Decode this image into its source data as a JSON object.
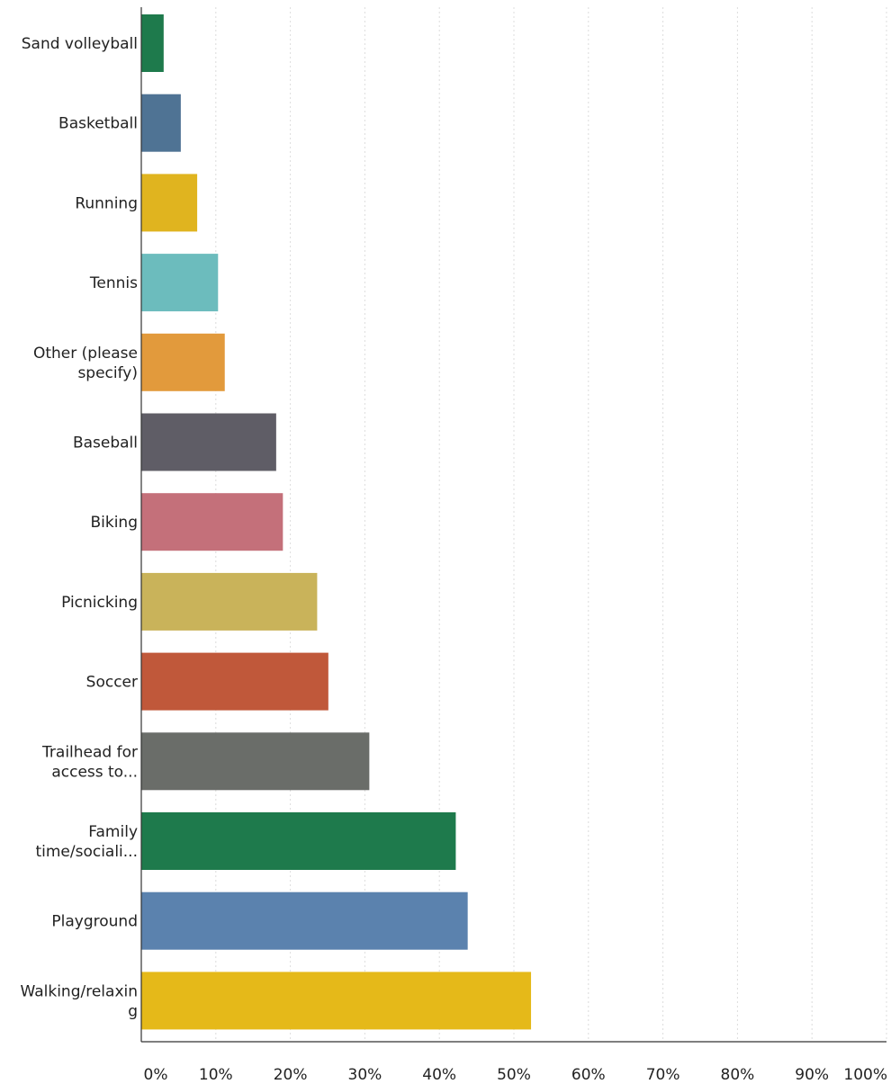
{
  "chart_data": {
    "type": "bar",
    "orientation": "horizontal",
    "title": "",
    "xlabel": "",
    "ylabel": "",
    "xlim": [
      0,
      100
    ],
    "grid": true,
    "categories": [
      [
        "Sand volleyball"
      ],
      [
        "Basketball"
      ],
      [
        "Running"
      ],
      [
        "Tennis"
      ],
      [
        "Other (please",
        "specify)"
      ],
      [
        "Baseball"
      ],
      [
        "Biking"
      ],
      [
        "Picnicking"
      ],
      [
        "Soccer"
      ],
      [
        "Trailhead for",
        "access to..."
      ],
      [
        "Family",
        "time/sociali..."
      ],
      [
        "Playground"
      ],
      [
        "Walking/relaxin",
        "g"
      ]
    ],
    "values": [
      3,
      5.3,
      7.5,
      10.3,
      11.2,
      18.1,
      19,
      23.6,
      25.1,
      30.6,
      42.2,
      43.8,
      52.3
    ],
    "colors": [
      "#1e7a4c",
      "#4f7394",
      "#e0b41f",
      "#6cbcbd",
      "#e29a3c",
      "#5f5d66",
      "#c4707a",
      "#c9b35a",
      "#c0583a",
      "#6a6d69",
      "#1e7a4c",
      "#5b82ae",
      "#e5b919"
    ],
    "x_ticks": [
      "0%",
      "10%",
      "20%",
      "30%",
      "40%",
      "50%",
      "60%",
      "70%",
      "80%",
      "90%",
      "100%"
    ]
  }
}
